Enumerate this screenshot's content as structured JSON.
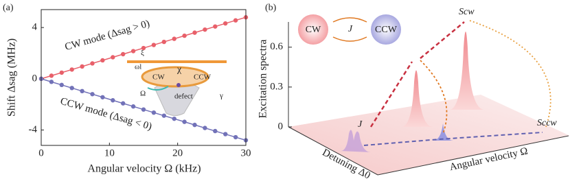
{
  "chart_data": {
    "type": "line",
    "panel_label": "(a)",
    "x_label": "Angular velocity Ω (kHz)",
    "y_label": "Shift Δsag (MHz)",
    "x": [
      0,
      1.5,
      3,
      4.5,
      6,
      7.5,
      9,
      10.5,
      12,
      13.5,
      15,
      16.5,
      18,
      19.5,
      21,
      22.5,
      24,
      25.5,
      27,
      28.5,
      30
    ],
    "series": [
      {
        "name": "CW mode (Δsag > 0)",
        "color": "#e8606a",
        "values": [
          0,
          0.24,
          0.48,
          0.72,
          0.96,
          1.2,
          1.44,
          1.68,
          1.92,
          2.16,
          2.4,
          2.64,
          2.88,
          3.12,
          3.36,
          3.6,
          3.84,
          4.08,
          4.32,
          4.56,
          4.8
        ]
      },
      {
        "name": "CCW mode (Δsag < 0)",
        "color": "#7272b8",
        "values": [
          0,
          -0.24,
          -0.48,
          -0.72,
          -0.96,
          -1.2,
          -1.44,
          -1.68,
          -1.92,
          -2.16,
          -2.4,
          -2.64,
          -2.88,
          -3.12,
          -3.36,
          -3.6,
          -3.84,
          -4.08,
          -4.32,
          -4.56,
          -4.8
        ]
      }
    ],
    "xlim": [
      0,
      30
    ],
    "xticks": [
      0,
      10,
      20,
      30
    ],
    "ylim": [
      -5.2,
      5.4
    ],
    "yticks": [
      -4,
      0,
      4
    ],
    "inset_labels": [
      "ξ",
      "ωl",
      "χ",
      "CW",
      "CCW",
      "Ω",
      "defect",
      "γ"
    ]
  },
  "illustration": {
    "panel_label": "(b)",
    "z_label": "Excitation spectra",
    "zlim": [
      0,
      0.79
    ],
    "zticks": [
      0,
      0.3,
      0.6
    ],
    "x_label": "Detuning Δ0",
    "y_label": "Angular velocity Ω",
    "mode_cw": "CW",
    "mode_ccw": "CCW",
    "coupling": "J",
    "floor_coupling": "J",
    "peak_cw": "Scw",
    "peak_ccw": "Sccw"
  }
}
